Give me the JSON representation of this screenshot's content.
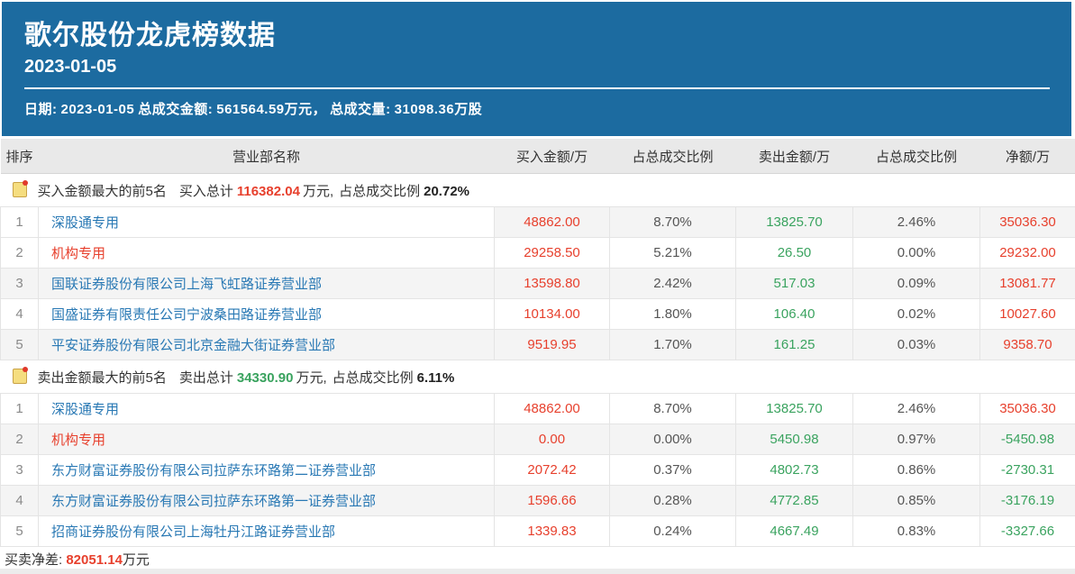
{
  "colors": {
    "header_blue": "#1c6ba0",
    "buy_red": "#e7402d",
    "sell_green": "#3aa35f",
    "link_blue": "#2878b4",
    "stripe_gray": "#f4f4f4",
    "header_row_gray": "#e9e9e9"
  },
  "header": {
    "title": "歌尔股份龙虎榜数据",
    "date": "2023-01-05",
    "info": {
      "date_label": "日期:",
      "date_value": "2023-01-05",
      "amount_label": "总成交金额:",
      "amount_value": "561564.59万元，",
      "volume_label": "总成交量:",
      "volume_value": "31098.36万股"
    }
  },
  "columns": [
    "排序",
    "营业部名称",
    "买入金额/万",
    "占总成交比例",
    "卖出金额/万",
    "占总成交比例",
    "净额/万"
  ],
  "sections": [
    {
      "icon": "note-icon",
      "title": "买入金额最大的前5名",
      "total_label": "买入总计",
      "total": "116382.04",
      "total_color": "red",
      "unit": "万元,",
      "ratio_label": "占总成交比例",
      "ratio": "20.72%",
      "rows": [
        {
          "rank": "1",
          "name": "深股通专用",
          "name_color": "blue",
          "buy": "48862.00",
          "buy_pct": "8.70%",
          "sell": "13825.70",
          "sell_pct": "2.46%",
          "net": "35036.30",
          "net_color": "red",
          "stripe": "nums"
        },
        {
          "rank": "2",
          "name": "机构专用",
          "name_color": "red",
          "buy": "29258.50",
          "buy_pct": "5.21%",
          "sell": "26.50",
          "sell_pct": "0.00%",
          "net": "29232.00",
          "net_color": "red",
          "stripe": "none"
        },
        {
          "rank": "3",
          "name": "国联证券股份有限公司上海飞虹路证券营业部",
          "name_color": "blue",
          "buy": "13598.80",
          "buy_pct": "2.42%",
          "sell": "517.03",
          "sell_pct": "0.09%",
          "net": "13081.77",
          "net_color": "red",
          "stripe": "full"
        },
        {
          "rank": "4",
          "name": "国盛证券有限责任公司宁波桑田路证券营业部",
          "name_color": "blue",
          "buy": "10134.00",
          "buy_pct": "1.80%",
          "sell": "106.40",
          "sell_pct": "0.02%",
          "net": "10027.60",
          "net_color": "red",
          "stripe": "none"
        },
        {
          "rank": "5",
          "name": "平安证券股份有限公司北京金融大街证券营业部",
          "name_color": "blue",
          "buy": "9519.95",
          "buy_pct": "1.70%",
          "sell": "161.25",
          "sell_pct": "0.03%",
          "net": "9358.70",
          "net_color": "red",
          "stripe": "full"
        }
      ]
    },
    {
      "icon": "note-icon",
      "title": "卖出金额最大的前5名",
      "total_label": "卖出总计",
      "total": "34330.90",
      "total_color": "green",
      "unit": "万元,",
      "ratio_label": "占总成交比例",
      "ratio": "6.11%",
      "rows": [
        {
          "rank": "1",
          "name": "深股通专用",
          "name_color": "blue",
          "buy": "48862.00",
          "buy_pct": "8.70%",
          "sell": "13825.70",
          "sell_pct": "2.46%",
          "net": "35036.30",
          "net_color": "red",
          "stripe": "none"
        },
        {
          "rank": "2",
          "name": "机构专用",
          "name_color": "red",
          "buy": "0.00",
          "buy_pct": "0.00%",
          "sell": "5450.98",
          "sell_pct": "0.97%",
          "net": "-5450.98",
          "net_color": "green",
          "stripe": "full"
        },
        {
          "rank": "3",
          "name": "东方财富证券股份有限公司拉萨东环路第二证券营业部",
          "name_color": "blue",
          "buy": "2072.42",
          "buy_pct": "0.37%",
          "sell": "4802.73",
          "sell_pct": "0.86%",
          "net": "-2730.31",
          "net_color": "green",
          "stripe": "none"
        },
        {
          "rank": "4",
          "name": "东方财富证券股份有限公司拉萨东环路第一证券营业部",
          "name_color": "blue",
          "buy": "1596.66",
          "buy_pct": "0.28%",
          "sell": "4772.85",
          "sell_pct": "0.85%",
          "net": "-3176.19",
          "net_color": "green",
          "stripe": "full"
        },
        {
          "rank": "5",
          "name": "招商证券股份有限公司上海牡丹江路证券营业部",
          "name_color": "blue",
          "buy": "1339.83",
          "buy_pct": "0.24%",
          "sell": "4667.49",
          "sell_pct": "0.83%",
          "net": "-3327.66",
          "net_color": "green",
          "stripe": "none"
        }
      ]
    }
  ],
  "footer": {
    "label": "买卖净差: ",
    "value": "82051.14",
    "unit": "万元"
  }
}
